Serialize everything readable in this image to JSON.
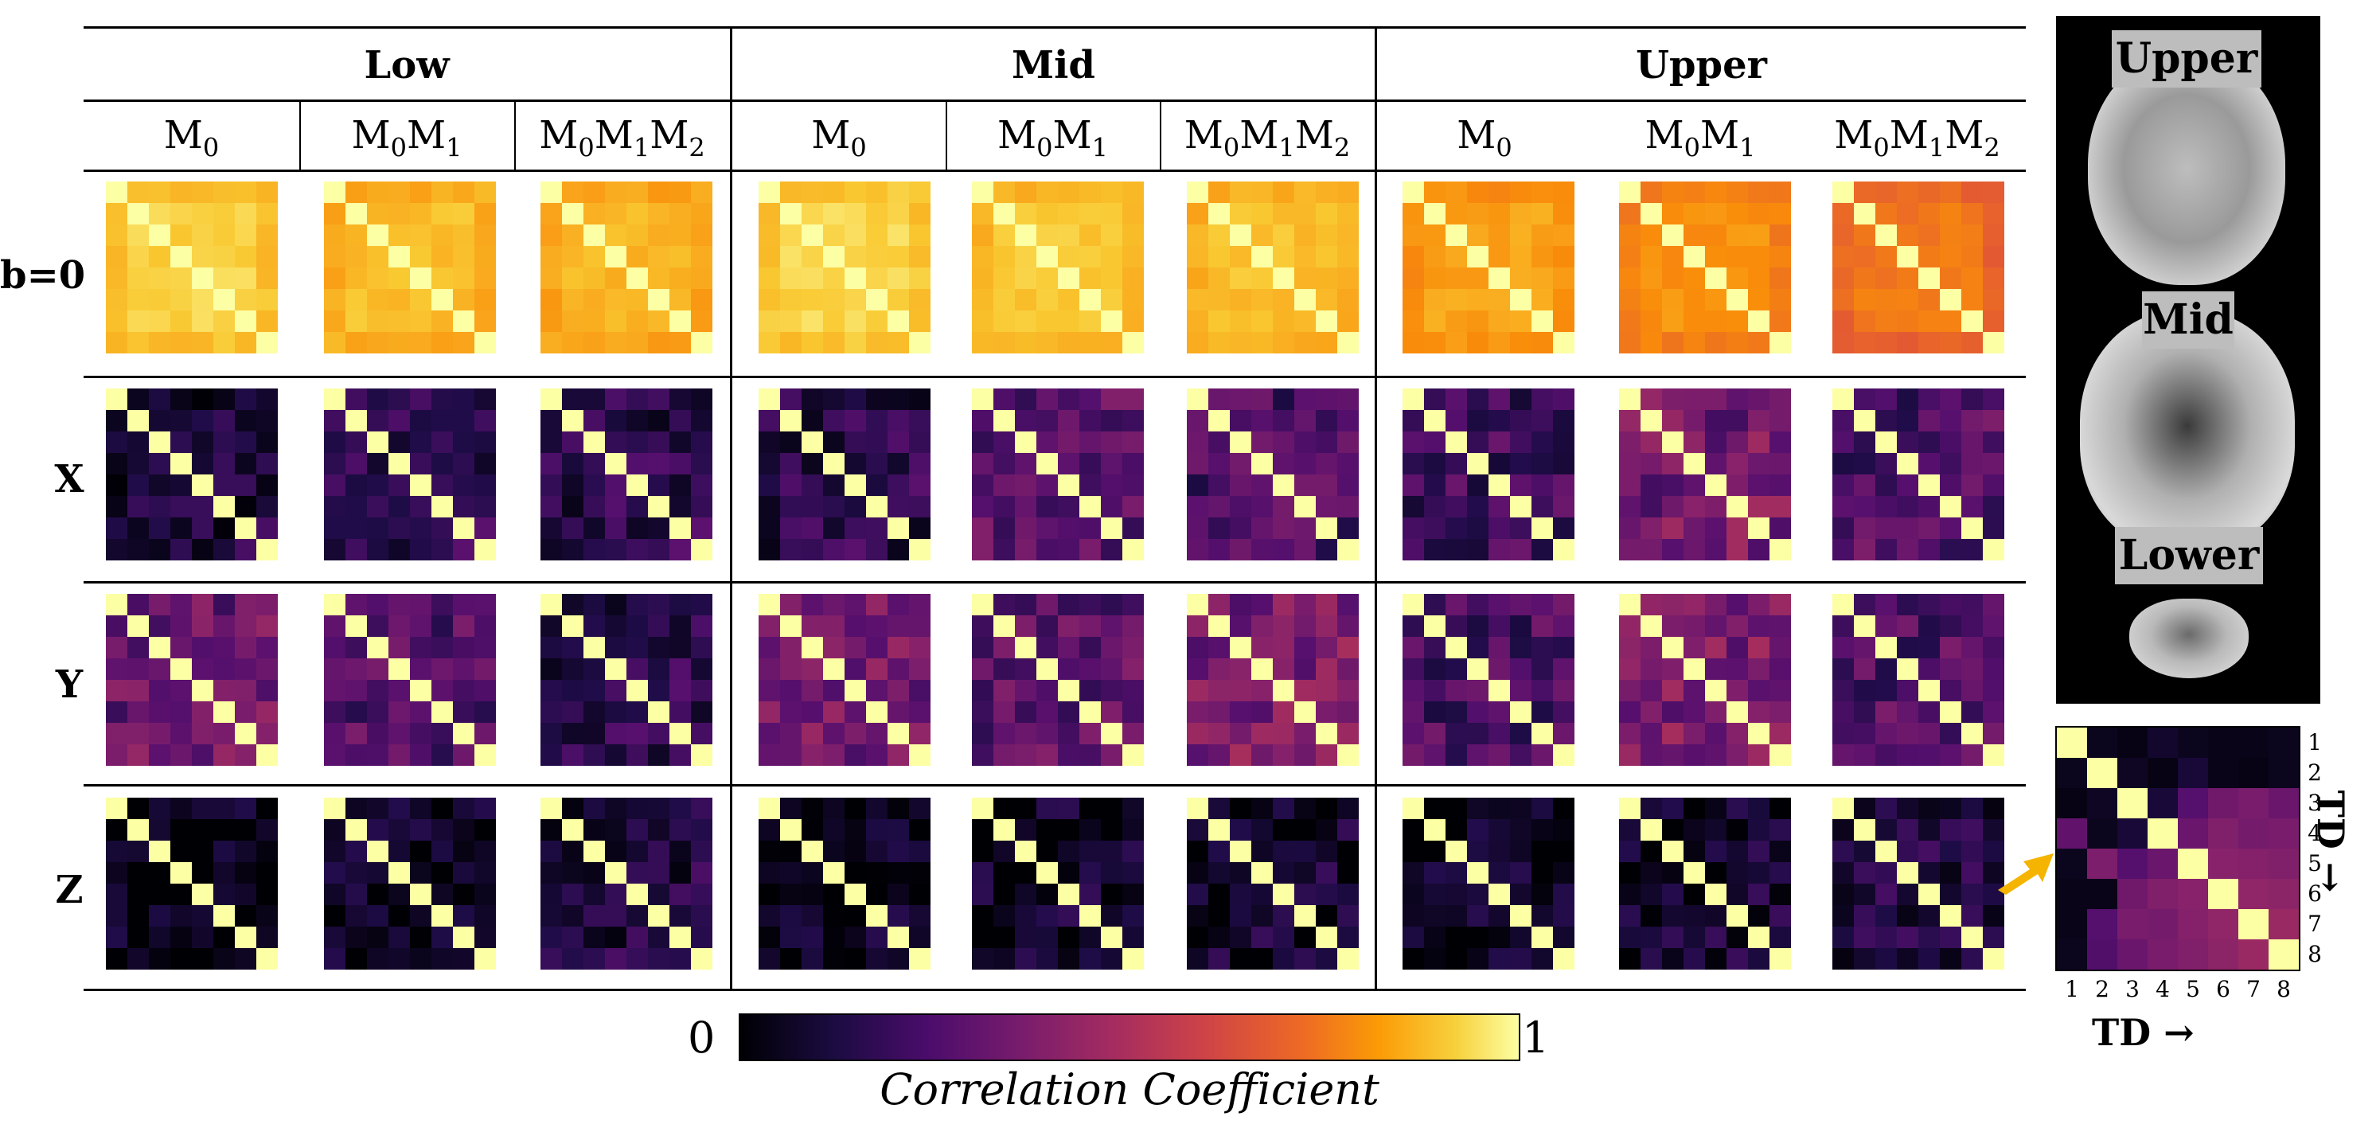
{
  "column_groups": [
    "Low",
    "Mid",
    "Upper"
  ],
  "columns": [
    {
      "base": "M",
      "sub1": "0",
      "base2": "",
      "sub2": "",
      "base3": "",
      "sub3": ""
    },
    {
      "base": "M",
      "sub1": "0",
      "base2": "M",
      "sub2": "1",
      "base3": "",
      "sub3": ""
    },
    {
      "base": "M",
      "sub1": "0",
      "base2": "M",
      "sub2": "1",
      "base3": "M",
      "sub3": "2"
    }
  ],
  "rows": [
    "b=0",
    "X",
    "Y",
    "Z"
  ],
  "colorbar": {
    "min": "0",
    "max": "1",
    "label": "Correlation Coefficient"
  },
  "brain_labels": [
    "Upper",
    "Mid",
    "Lower"
  ],
  "inset": {
    "tick_labels": [
      "1",
      "2",
      "3",
      "4",
      "5",
      "6",
      "7",
      "8"
    ],
    "x_axis_label": "TD →",
    "y_axis_label": "TD →",
    "matrix": [
      [
        1.0,
        0.05,
        0.03,
        0.08,
        0.05,
        0.04,
        0.04,
        0.05
      ],
      [
        0.05,
        1.0,
        0.06,
        0.03,
        0.1,
        0.04,
        0.03,
        0.05
      ],
      [
        0.03,
        0.06,
        1.0,
        0.1,
        0.25,
        0.32,
        0.34,
        0.3
      ],
      [
        0.28,
        0.05,
        0.1,
        1.0,
        0.3,
        0.36,
        0.33,
        0.34
      ],
      [
        0.05,
        0.35,
        0.25,
        0.3,
        1.0,
        0.38,
        0.37,
        0.36
      ],
      [
        0.04,
        0.04,
        0.32,
        0.36,
        0.38,
        1.0,
        0.4,
        0.39
      ],
      [
        0.04,
        0.25,
        0.34,
        0.33,
        0.37,
        0.4,
        1.0,
        0.42
      ],
      [
        0.05,
        0.24,
        0.3,
        0.34,
        0.36,
        0.39,
        0.42,
        1.0
      ]
    ]
  },
  "colormap": "inferno"
}
